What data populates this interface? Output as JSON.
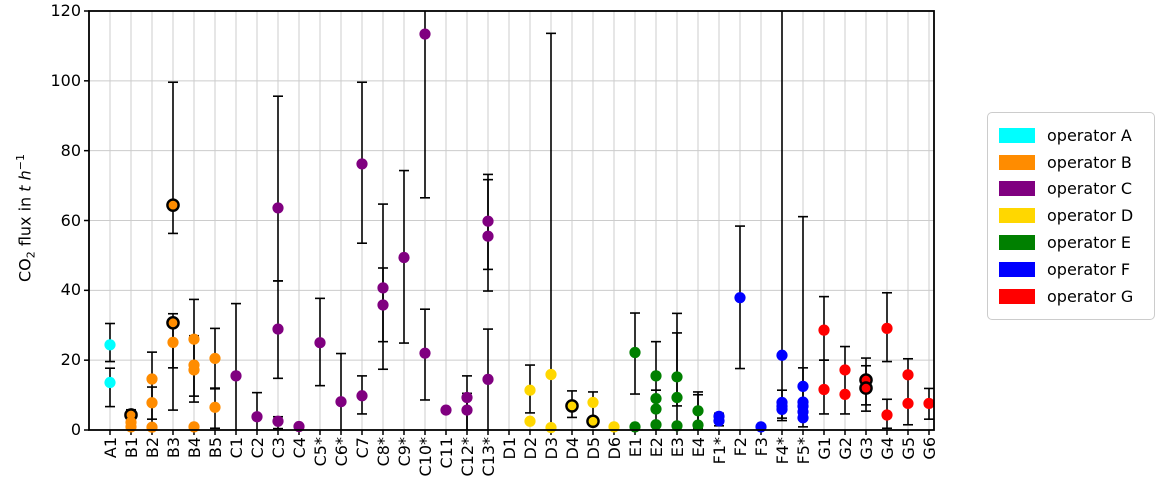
{
  "chart_data": {
    "type": "scatter",
    "title": "",
    "xlabel": "",
    "ylabel": "CO₂ flux in t h⁻¹",
    "ylabel_parts": {
      "pre": "CO",
      "sub": "2",
      "mid": " flux in ",
      "vars": "t h",
      "sup": "−1"
    },
    "ylim": [
      0,
      120
    ],
    "yticks": [
      0,
      20,
      40,
      60,
      80,
      100,
      120
    ],
    "grid": true,
    "marker": "circle",
    "legend_position": "outside-right",
    "categories": [
      "A1",
      "B1",
      "B2",
      "B3",
      "B4",
      "B5",
      "C1",
      "C2",
      "C3",
      "C4",
      "C5*",
      "C6*",
      "C7",
      "C8*",
      "C9*",
      "C10*",
      "C11",
      "C12*",
      "C13*",
      "D1",
      "D2",
      "D3",
      "D4",
      "D5",
      "D6",
      "E1",
      "E2",
      "E3",
      "E4",
      "F1*",
      "F2",
      "F3",
      "F4*",
      "F5*",
      "G1",
      "G2",
      "G3",
      "G4",
      "G5",
      "G6"
    ],
    "legend": [
      {
        "label": "operator A",
        "color": "#00ffff"
      },
      {
        "label": "operator B",
        "color": "#ff8c00"
      },
      {
        "label": "operator C",
        "color": "#800080"
      },
      {
        "label": "operator D",
        "color": "#ffd700"
      },
      {
        "label": "operator E",
        "color": "#008000"
      },
      {
        "label": "operator F",
        "color": "#0000ff"
      },
      {
        "label": "operator G",
        "color": "#ff0000"
      }
    ],
    "operators": [
      {
        "name": "operator A",
        "color": "#00ffff",
        "facilities": [
          {
            "id": "A1",
            "points": [
              {
                "v": 24.4
              },
              {
                "v": 13.6
              }
            ],
            "bars": [
              [
                19.6,
                30.5
              ],
              [
                6.7,
                17.7
              ]
            ]
          }
        ]
      },
      {
        "name": "operator B",
        "color": "#ff8c00",
        "facilities": [
          {
            "id": "B1",
            "points": [
              {
                "v": 4.3,
                "circled": true
              },
              {
                "v": 2.2
              },
              {
                "v": 0.9
              }
            ],
            "bars": [
              [
                0.4,
                5.8
              ]
            ]
          },
          {
            "id": "B2",
            "points": [
              {
                "v": 14.6
              },
              {
                "v": 7.8
              },
              {
                "v": 0.8
              }
            ],
            "bars": [
              [
                3.1,
                22.3
              ],
              [
                0.4,
                12.3
              ]
            ]
          },
          {
            "id": "B3",
            "points": [
              {
                "v": 64.4,
                "circled": true
              },
              {
                "v": 30.7,
                "circled": true
              },
              {
                "v": 25.1
              }
            ],
            "bars": [
              [
                56.3,
                99.6
              ],
              [
                17.8,
                33.3
              ],
              [
                5.7,
                30.5
              ]
            ]
          },
          {
            "id": "B4",
            "points": [
              {
                "v": 26
              },
              {
                "v": 18.6
              },
              {
                "v": 17.2
              },
              {
                "v": 0.9
              }
            ],
            "bars": [
              [
                9.7,
                37.4
              ],
              [
                8,
                27
              ]
            ]
          },
          {
            "id": "B5",
            "points": [
              {
                "v": 20.5
              },
              {
                "v": 6.5
              }
            ],
            "bars": [
              [
                11.8,
                29.1
              ],
              [
                0.5,
                12
              ]
            ]
          }
        ]
      },
      {
        "name": "operator C",
        "color": "#800080",
        "facilities": [
          {
            "id": "C1",
            "points": [
              {
                "v": 15.5
              }
            ],
            "bars": [
              [
                0,
                36.2
              ]
            ]
          },
          {
            "id": "C2",
            "points": [
              {
                "v": 3.8
              }
            ],
            "bars": [
              [
                0,
                10.7
              ]
            ]
          },
          {
            "id": "C3",
            "points": [
              {
                "v": 63.6
              },
              {
                "v": 28.9
              },
              {
                "v": 2.5
              }
            ],
            "bars": [
              [
                42.7,
                95.6
              ],
              [
                14.8,
                42.7
              ],
              [
                0.4,
                3.8
              ]
            ]
          },
          {
            "id": "C4",
            "points": [
              {
                "v": 1
              }
            ],
            "bars": []
          },
          {
            "id": "C5*",
            "points": [
              {
                "v": 25
              }
            ],
            "bars": [
              [
                12.7,
                37.7
              ]
            ]
          },
          {
            "id": "C6*",
            "points": [
              {
                "v": 8.1
              }
            ],
            "bars": [
              [
                0,
                21.9
              ]
            ]
          },
          {
            "id": "C7",
            "points": [
              {
                "v": 76.2
              },
              {
                "v": 9.8
              }
            ],
            "bars": [
              [
                53.5,
                99.6
              ],
              [
                4.6,
                15.5
              ]
            ]
          },
          {
            "id": "C8*",
            "points": [
              {
                "v": 40.7
              },
              {
                "v": 35.8
              }
            ],
            "bars": [
              [
                25.3,
                64.7
              ],
              [
                17.4,
                46.4
              ]
            ]
          },
          {
            "id": "C9*",
            "points": [
              {
                "v": 49.4
              }
            ],
            "bars": [
              [
                24.9,
                74.3
              ]
            ]
          },
          {
            "id": "C10*",
            "points": [
              {
                "v": 113.4
              },
              {
                "v": 22
              }
            ],
            "bars": [
              [
                66.5,
                120
              ],
              [
                8.6,
                34.6
              ]
            ]
          },
          {
            "id": "C11",
            "points": [
              {
                "v": 5.7
              }
            ],
            "bars": []
          },
          {
            "id": "C12*",
            "points": [
              {
                "v": 9.3
              },
              {
                "v": 5.7
              }
            ],
            "bars": [
              [
                0,
                15.5
              ],
              [
                0,
                10.5
              ]
            ]
          },
          {
            "id": "C13*",
            "points": [
              {
                "v": 59.8
              },
              {
                "v": 55.5
              },
              {
                "v": 14.5
              }
            ],
            "bars": [
              [
                46,
                73.2
              ],
              [
                39.8,
                71.7
              ],
              [
                0,
                28.9
              ]
            ]
          }
        ]
      },
      {
        "name": "operator D",
        "color": "#ffd700",
        "facilities": [
          {
            "id": "D1",
            "points": [],
            "bars": []
          },
          {
            "id": "D2",
            "points": [
              {
                "v": 11.4
              },
              {
                "v": 2.5
              }
            ],
            "bars": [
              [
                4.9,
                18.6
              ]
            ]
          },
          {
            "id": "D3",
            "points": [
              {
                "v": 15.9
              },
              {
                "v": 0.7
              }
            ],
            "bars": [
              [
                0.9,
                113.6
              ]
            ]
          },
          {
            "id": "D4",
            "points": [
              {
                "v": 6.9,
                "circled": true
              }
            ],
            "bars": [
              [
                3.6,
                11.2
              ]
            ]
          },
          {
            "id": "D5",
            "points": [
              {
                "v": 7.9
              },
              {
                "v": 2.5,
                "circled": true
              }
            ],
            "bars": [
              [
                3.6,
                10.9
              ]
            ]
          },
          {
            "id": "D6",
            "points": [
              {
                "v": 0.9
              }
            ],
            "bars": []
          }
        ]
      },
      {
        "name": "operator E",
        "color": "#008000",
        "facilities": [
          {
            "id": "E1",
            "points": [
              {
                "v": 22.2
              },
              {
                "v": 0.9
              }
            ],
            "bars": [
              [
                10.3,
                33.5
              ]
            ]
          },
          {
            "id": "E2",
            "points": [
              {
                "v": 15.5
              },
              {
                "v": 9
              },
              {
                "v": 6
              },
              {
                "v": 1.5
              }
            ],
            "bars": [
              [
                11.4,
                25.3
              ],
              [
                1.7,
                11.4
              ]
            ]
          },
          {
            "id": "E3",
            "points": [
              {
                "v": 15.2
              },
              {
                "v": 9.3
              },
              {
                "v": 1.2
              }
            ],
            "bars": [
              [
                6.9,
                33.4
              ],
              [
                1,
                27.8
              ]
            ]
          },
          {
            "id": "E4",
            "points": [
              {
                "v": 5.5
              },
              {
                "v": 1.4
              }
            ],
            "bars": [
              [
                1.4,
                10.9
              ],
              [
                0.3,
                10.1
              ]
            ]
          }
        ]
      },
      {
        "name": "operator F",
        "color": "#0000ff",
        "facilities": [
          {
            "id": "F1*",
            "points": [
              {
                "v": 3.9
              },
              {
                "v": 2.6
              }
            ],
            "bars": [
              [
                1.2,
                4.8
              ]
            ]
          },
          {
            "id": "F2",
            "points": [
              {
                "v": 37.9
              }
            ],
            "bars": [
              [
                17.6,
                58.4
              ]
            ]
          },
          {
            "id": "F3",
            "points": [
              {
                "v": 0.9
              }
            ],
            "bars": []
          },
          {
            "id": "F4*",
            "points": [
              {
                "v": 21.4
              },
              {
                "v": 7.9
              },
              {
                "v": 6.8
              },
              {
                "v": 5.9
              }
            ],
            "bars": [
              [
                2.7,
                120
              ],
              [
                3.4,
                11.4
              ]
            ]
          },
          {
            "id": "F5*",
            "points": [
              {
                "v": 12.5
              },
              {
                "v": 8
              },
              {
                "v": 6.8
              },
              {
                "v": 5.2
              },
              {
                "v": 3.5
              }
            ],
            "bars": [
              [
                0.9,
                61.1
              ],
              [
                3,
                17.8
              ]
            ]
          }
        ]
      },
      {
        "name": "operator G",
        "color": "#ff0000",
        "facilities": [
          {
            "id": "G1",
            "points": [
              {
                "v": 28.6
              },
              {
                "v": 11.6
              }
            ],
            "bars": [
              [
                20,
                38.2
              ],
              [
                4.6,
                20
              ]
            ]
          },
          {
            "id": "G2",
            "points": [
              {
                "v": 17.2
              },
              {
                "v": 10.2
              }
            ],
            "bars": [
              [
                4.6,
                23.9
              ]
            ]
          },
          {
            "id": "G3",
            "points": [
              {
                "v": 14.3,
                "circled": true
              },
              {
                "v": 12,
                "circled": true
              }
            ],
            "bars": [
              [
                5.4,
                20.6
              ],
              [
                7.2,
                18.4
              ]
            ]
          },
          {
            "id": "G4",
            "points": [
              {
                "v": 29.1
              },
              {
                "v": 4.3
              }
            ],
            "bars": [
              [
                19.6,
                39.3
              ],
              [
                0.5,
                8.8
              ]
            ]
          },
          {
            "id": "G5",
            "points": [
              {
                "v": 15.8
              },
              {
                "v": 7.6
              }
            ],
            "bars": [
              [
                1.5,
                20.4
              ]
            ]
          },
          {
            "id": "G6",
            "points": [
              {
                "v": 7.6
              }
            ],
            "bars": [
              [
                3.1,
                11.9
              ]
            ]
          }
        ]
      }
    ]
  }
}
